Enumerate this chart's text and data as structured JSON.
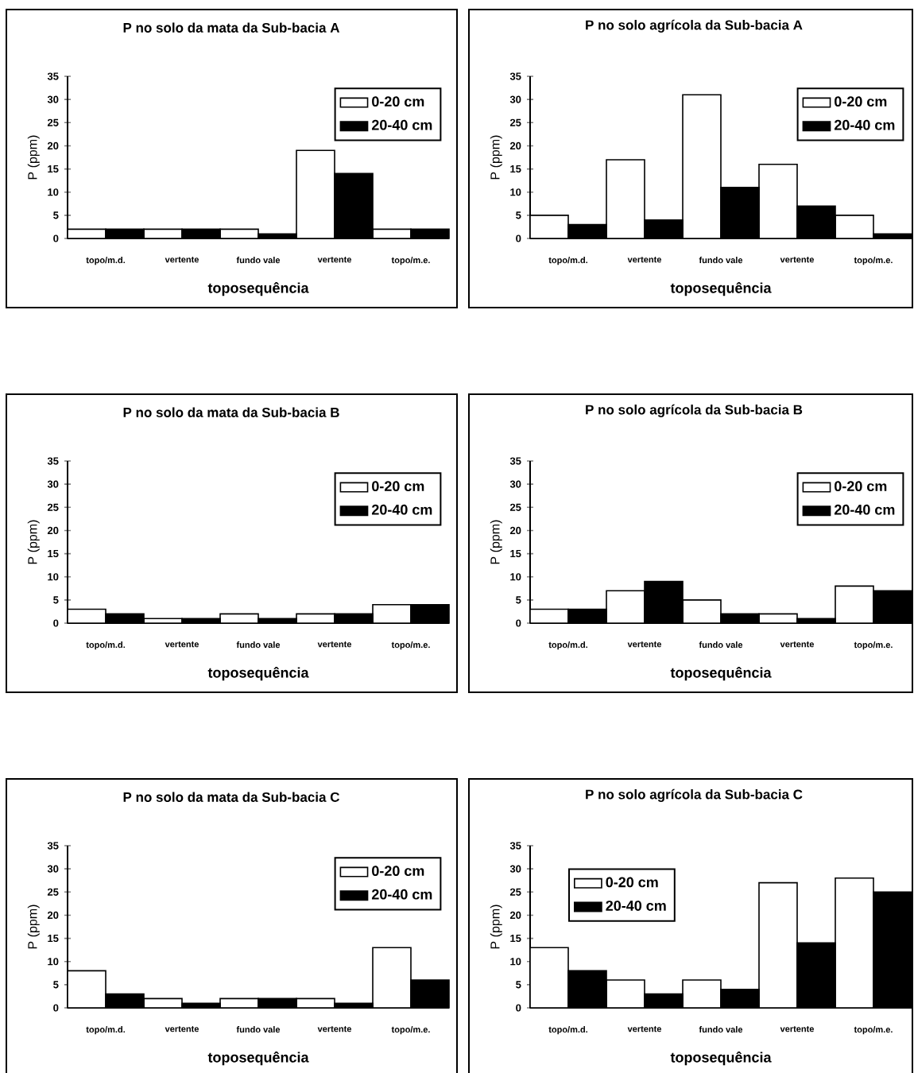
{
  "chart_data": [
    {
      "type": "bar",
      "title": "P no solo da mata da Sub-bacia A",
      "xlabel": "toposequência",
      "ylabel": "P (ppm)",
      "categories": [
        "topo/m.d.",
        "vertente",
        "fundo vale",
        "vertente",
        "topo/m.e."
      ],
      "ylim": [
        0,
        35
      ],
      "yticks": [
        0,
        5,
        10,
        15,
        20,
        25,
        30,
        35
      ],
      "legend": "top right",
      "series": [
        {
          "name": "0-20 cm",
          "color": "#ffffff",
          "values": [
            2,
            2,
            2,
            19,
            2
          ]
        },
        {
          "name": "20-40 cm",
          "color": "#000000",
          "values": [
            2,
            2,
            1,
            14,
            2
          ]
        }
      ]
    },
    {
      "type": "bar",
      "title": "P no solo agrícola da Sub-bacia A",
      "xlabel": "toposequência",
      "ylabel": "P (ppm)",
      "categories": [
        "topo/m.d.",
        "vertente",
        "fundo vale",
        "vertente",
        "topo/m.e."
      ],
      "ylim": [
        0,
        35
      ],
      "yticks": [
        0,
        5,
        10,
        15,
        20,
        25,
        30,
        35
      ],
      "legend": "top right",
      "series": [
        {
          "name": "0-20 cm",
          "color": "#ffffff",
          "values": [
            5,
            17,
            31,
            16,
            5
          ]
        },
        {
          "name": "20-40 cm",
          "color": "#000000",
          "values": [
            3,
            4,
            11,
            7,
            1
          ]
        }
      ]
    },
    {
      "type": "bar",
      "title": "P no solo da mata da Sub-bacia B",
      "xlabel": "toposequência",
      "ylabel": "P (ppm)",
      "categories": [
        "topo/m.d.",
        "vertente",
        "fundo vale",
        "vertente",
        "topo/m.e."
      ],
      "ylim": [
        0,
        35
      ],
      "yticks": [
        0,
        5,
        10,
        15,
        20,
        25,
        30,
        35
      ],
      "legend": "top right",
      "series": [
        {
          "name": "0-20 cm",
          "color": "#ffffff",
          "values": [
            3,
            1,
            2,
            2,
            4
          ]
        },
        {
          "name": "20-40 cm",
          "color": "#000000",
          "values": [
            2,
            1,
            1,
            2,
            4
          ]
        }
      ]
    },
    {
      "type": "bar",
      "title": "P no solo agrícola da Sub-bacia B",
      "xlabel": "toposequência",
      "ylabel": "P (ppm)",
      "categories": [
        "topo/m.d.",
        "vertente",
        "fundo vale",
        "vertente",
        "topo/m.e."
      ],
      "ylim": [
        0,
        35
      ],
      "yticks": [
        0,
        5,
        10,
        15,
        20,
        25,
        30,
        35
      ],
      "legend": "top right",
      "series": [
        {
          "name": "0-20 cm",
          "color": "#ffffff",
          "values": [
            3,
            7,
            5,
            2,
            8
          ]
        },
        {
          "name": "20-40 cm",
          "color": "#000000",
          "values": [
            3,
            9,
            2,
            1,
            7
          ]
        }
      ]
    },
    {
      "type": "bar",
      "title": "P no solo da mata da Sub-bacia C",
      "xlabel": "toposequência",
      "ylabel": "P (ppm)",
      "categories": [
        "topo/m.d.",
        "vertente",
        "fundo vale",
        "vertente",
        "topo/m.e."
      ],
      "ylim": [
        0,
        35
      ],
      "yticks": [
        0,
        5,
        10,
        15,
        20,
        25,
        30,
        35
      ],
      "legend": "top right",
      "series": [
        {
          "name": "0-20 cm",
          "color": "#ffffff",
          "values": [
            8,
            2,
            2,
            2,
            13
          ]
        },
        {
          "name": "20-40 cm",
          "color": "#000000",
          "values": [
            3,
            1,
            2,
            1,
            6
          ]
        }
      ]
    },
    {
      "type": "bar",
      "title": "P no solo agrícola da Sub-bacia C",
      "xlabel": "toposequência",
      "ylabel": "P (ppm)",
      "categories": [
        "topo/m.d.",
        "vertente",
        "fundo vale",
        "vertente",
        "topo/m.e."
      ],
      "ylim": [
        0,
        35
      ],
      "yticks": [
        0,
        5,
        10,
        15,
        20,
        25,
        30,
        35
      ],
      "legend": "top left",
      "series": [
        {
          "name": "0-20 cm",
          "color": "#ffffff",
          "values": [
            13,
            6,
            6,
            27,
            28
          ]
        },
        {
          "name": "20-40 cm",
          "color": "#000000",
          "values": [
            8,
            3,
            4,
            14,
            25
          ]
        }
      ]
    }
  ]
}
